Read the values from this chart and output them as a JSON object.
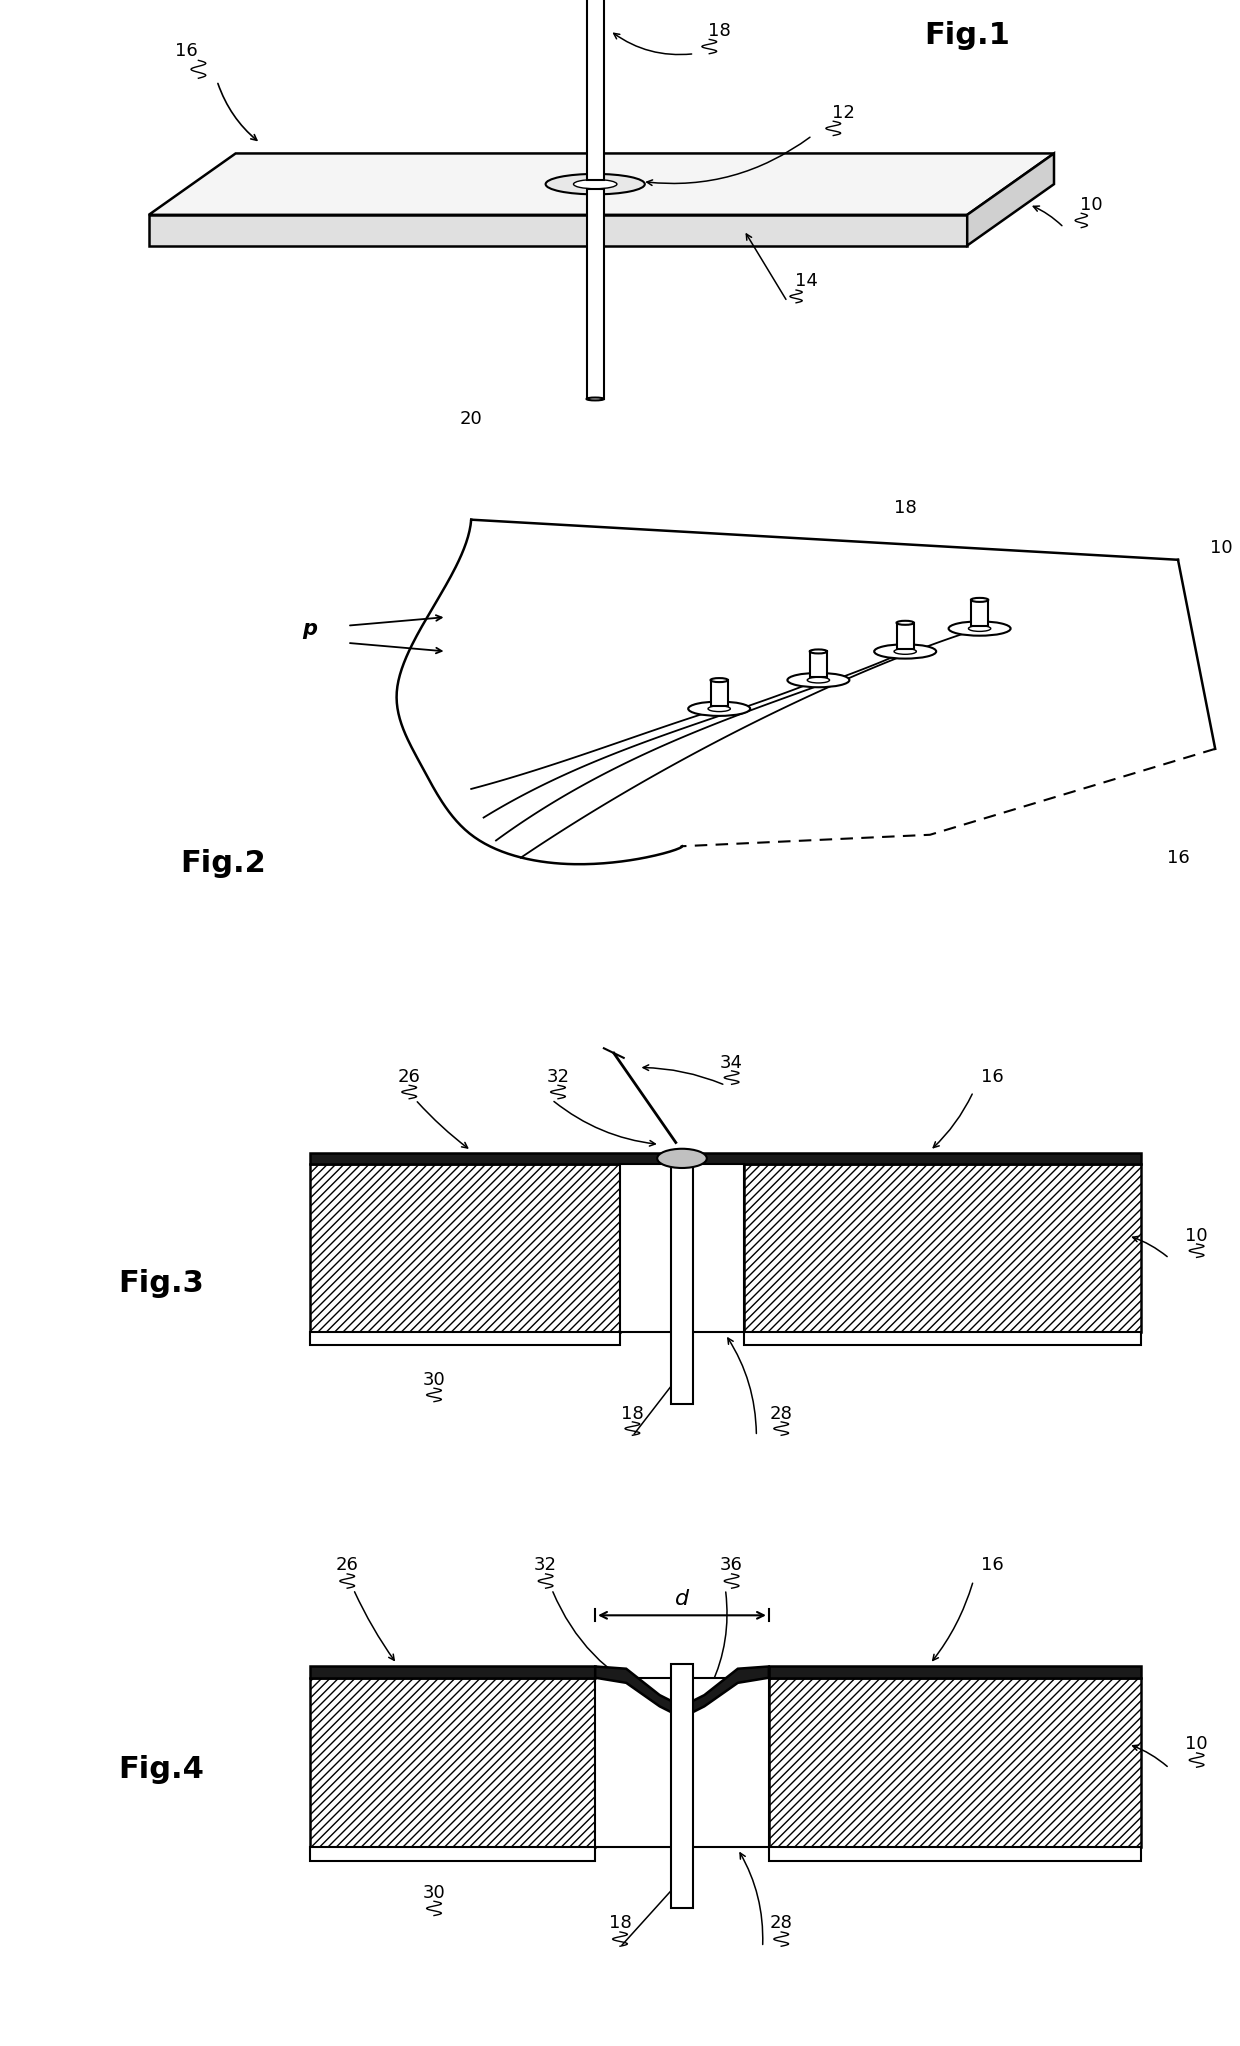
{
  "fig_title_1": "Fig.1",
  "fig_title_2": "Fig.2",
  "fig_title_3": "Fig.3",
  "fig_title_4": "Fig.4",
  "bg_color": "#ffffff",
  "line_color": "#000000",
  "label_fontsize": 13,
  "figtitle_fontsize": 22
}
